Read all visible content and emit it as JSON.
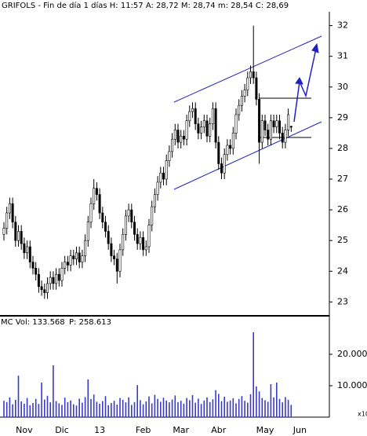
{
  "chart_data": [
    {
      "type": "candlestick",
      "title": "GRIFOLS - Fin de día 1 días H: 11:57 A: 28,72 M: 28,74 m: 28,54 C: 28,69",
      "categories": [
        null,
        null,
        null,
        null,
        null,
        null,
        null,
        "Nov",
        null,
        null,
        null,
        null,
        null,
        null,
        null,
        null,
        null,
        null,
        null,
        null,
        "Dic",
        null,
        null,
        null,
        null,
        null,
        null,
        null,
        null,
        null,
        null,
        null,
        null,
        "13",
        null,
        null,
        null,
        null,
        null,
        null,
        null,
        null,
        null,
        null,
        null,
        null,
        null,
        null,
        "Feb",
        null,
        null,
        null,
        null,
        null,
        null,
        null,
        null,
        null,
        null,
        null,
        null,
        "Mar",
        null,
        null,
        null,
        null,
        null,
        null,
        null,
        null,
        null,
        null,
        null,
        null,
        "Abr",
        null,
        null,
        null,
        null,
        null,
        null,
        null,
        null,
        null,
        null,
        null,
        null,
        null,
        null,
        null,
        "May",
        null,
        null,
        null,
        null,
        null,
        null,
        null,
        null,
        null,
        null,
        null,
        "Jun",
        null
      ],
      "open": [
        25.2,
        25.4,
        25.9,
        26.2,
        25.6,
        25.0,
        25.3,
        24.9,
        24.6,
        24.8,
        24.3,
        24.1,
        23.9,
        23.5,
        23.4,
        23.3,
        23.6,
        23.8,
        23.6,
        23.9,
        23.7,
        24.1,
        24.3,
        24.2,
        24.5,
        24.4,
        24.6,
        24.3,
        24.5,
        25.0,
        25.6,
        26.2,
        26.7,
        26.5,
        25.9,
        25.6,
        25.3,
        24.9,
        24.5,
        24.4,
        24.0,
        24.7,
        25.2,
        25.8,
        26.0,
        25.6,
        25.2,
        24.9,
        25.1,
        24.7,
        24.8,
        25.5,
        26.1,
        26.5,
        26.9,
        27.2,
        27.0,
        27.6,
        27.9,
        28.3,
        28.6,
        28.2,
        28.4,
        28.3,
        28.9,
        29.2,
        29.3,
        28.8,
        28.5,
        28.7,
        28.9,
        28.4,
        28.8,
        29.3,
        28.2,
        27.5,
        27.2,
        27.8,
        28.1,
        28.0,
        28.5,
        29.1,
        29.4,
        29.7,
        29.9,
        30.3,
        30.5,
        30.3,
        29.6,
        28.2,
        28.9,
        28.6,
        28.3,
        28.9,
        28.7,
        28.9,
        28.5,
        28.2,
        28.6,
        28.72,
        null,
        null,
        null,
        null
      ],
      "high": [
        25.6,
        26.1,
        26.4,
        26.4,
        25.8,
        25.5,
        25.5,
        25.1,
        25.0,
        25.0,
        24.5,
        24.3,
        24.1,
        23.7,
        23.6,
        23.8,
        24.0,
        24.0,
        24.1,
        24.1,
        24.3,
        24.5,
        24.5,
        24.7,
        24.7,
        24.8,
        24.8,
        24.7,
        25.2,
        25.8,
        26.4,
        27.0,
        26.9,
        26.7,
        26.1,
        25.8,
        25.5,
        25.1,
        24.7,
        24.6,
        24.9,
        25.4,
        26.0,
        26.2,
        26.2,
        25.8,
        25.4,
        25.3,
        25.3,
        25.0,
        25.7,
        26.3,
        26.7,
        27.1,
        27.4,
        27.4,
        27.8,
        28.1,
        28.5,
        28.8,
        28.8,
        28.6,
        28.6,
        29.1,
        29.4,
        29.5,
        29.5,
        29.0,
        28.9,
        29.1,
        29.1,
        29.0,
        29.5,
        29.5,
        28.4,
        27.7,
        28.0,
        28.3,
        28.3,
        28.7,
        29.3,
        29.6,
        29.9,
        30.1,
        30.5,
        30.7,
        32.0,
        30.5,
        29.8,
        29.1,
        29.1,
        28.8,
        29.1,
        29.1,
        29.1,
        29.1,
        28.7,
        28.8,
        29.3,
        28.74,
        null,
        null,
        null,
        null
      ],
      "low": [
        25.0,
        25.2,
        25.7,
        25.4,
        24.8,
        24.8,
        24.7,
        24.4,
        24.4,
        24.1,
        23.9,
        23.7,
        23.3,
        23.2,
        23.1,
        23.1,
        23.4,
        23.4,
        23.4,
        23.5,
        23.5,
        23.9,
        24.0,
        24.0,
        24.2,
        24.2,
        24.1,
        24.1,
        24.3,
        24.8,
        25.4,
        26.0,
        26.3,
        25.7,
        25.4,
        25.1,
        24.7,
        24.3,
        24.2,
        23.6,
        23.8,
        24.5,
        25.0,
        25.6,
        25.4,
        25.0,
        24.7,
        24.7,
        24.5,
        24.5,
        24.6,
        25.3,
        25.9,
        26.3,
        26.7,
        26.8,
        26.8,
        27.4,
        27.7,
        28.1,
        28.0,
        28.0,
        28.1,
        28.1,
        28.7,
        29.0,
        28.6,
        28.3,
        28.3,
        28.5,
        28.2,
        28.2,
        28.6,
        28.0,
        27.3,
        27.0,
        27.0,
        27.6,
        27.8,
        27.8,
        28.3,
        28.9,
        29.2,
        29.5,
        29.7,
        30.1,
        30.1,
        29.4,
        27.5,
        28.0,
        28.4,
        28.1,
        28.1,
        28.5,
        28.5,
        28.3,
        28.0,
        28.0,
        28.4,
        28.54,
        null,
        null,
        null,
        null
      ],
      "close": [
        25.4,
        25.9,
        26.2,
        25.6,
        25.0,
        25.3,
        24.9,
        24.6,
        24.8,
        24.3,
        24.1,
        23.9,
        23.5,
        23.4,
        23.3,
        23.6,
        23.8,
        23.6,
        23.9,
        23.7,
        24.1,
        24.3,
        24.2,
        24.5,
        24.4,
        24.6,
        24.3,
        24.5,
        25.0,
        25.6,
        26.2,
        26.7,
        26.5,
        25.9,
        25.6,
        25.3,
        24.9,
        24.5,
        24.4,
        24.0,
        24.7,
        25.2,
        25.8,
        26.0,
        25.6,
        25.2,
        24.9,
        25.1,
        24.7,
        24.8,
        25.5,
        26.1,
        26.5,
        26.9,
        27.2,
        27.0,
        27.6,
        27.9,
        28.3,
        28.6,
        28.2,
        28.4,
        28.3,
        28.9,
        29.2,
        29.3,
        28.8,
        28.5,
        28.7,
        28.9,
        28.4,
        28.8,
        29.3,
        28.2,
        27.5,
        27.2,
        27.8,
        28.1,
        28.0,
        28.5,
        29.1,
        29.4,
        29.7,
        29.9,
        30.3,
        30.5,
        30.3,
        29.6,
        28.2,
        28.9,
        28.6,
        28.3,
        28.9,
        28.7,
        28.9,
        28.5,
        28.2,
        28.6,
        29.1,
        28.69,
        null,
        null,
        null,
        null
      ],
      "color": "#000000",
      "ylim": [
        22.6,
        32.45
      ],
      "yticks": [
        23,
        24,
        25,
        26,
        27,
        28,
        29,
        30,
        31,
        32
      ]
    },
    {
      "type": "bar",
      "title": "MC Vol: 133.568",
      "subtitle": "P: 258.613",
      "unit_label": "x10",
      "values": [
        5200,
        4800,
        6300,
        4100,
        5500,
        13200,
        5000,
        4300,
        6100,
        3800,
        4500,
        5800,
        4200,
        11000,
        5600,
        6800,
        4700,
        16500,
        5100,
        4400,
        3900,
        6200,
        4800,
        5300,
        4100,
        3700,
        5900,
        4600,
        6400,
        12000,
        5800,
        7200,
        4900,
        4300,
        5100,
        6700,
        3800,
        4500,
        5200,
        4000,
        6100,
        5500,
        4700,
        6300,
        3900,
        4800,
        10200,
        5400,
        4100,
        5000,
        6600,
        4400,
        7100,
        5800,
        4900,
        6200,
        5300,
        4700,
        5600,
        6900,
        4800,
        5200,
        4300,
        6100,
        5400,
        7000,
        4600,
        5900,
        4200,
        5300,
        6300,
        4800,
        5700,
        8600,
        7400,
        5100,
        6500,
        4900,
        5300,
        6000,
        4400,
        5800,
        6700,
        5200,
        4600,
        7300,
        27000,
        9800,
        8200,
        6100,
        5400,
        4900,
        10500,
        6300,
        11000,
        5800,
        4700,
        6400,
        5500,
        3900,
        null,
        null,
        null,
        null
      ],
      "color": "#3a3ac8",
      "subtitle_color": "#d00000",
      "ylim": [
        0,
        31500
      ],
      "yticks": [
        {
          "value": 10000,
          "label": "10.000"
        },
        {
          "value": 20000,
          "label": "20.000"
        }
      ]
    }
  ]
}
